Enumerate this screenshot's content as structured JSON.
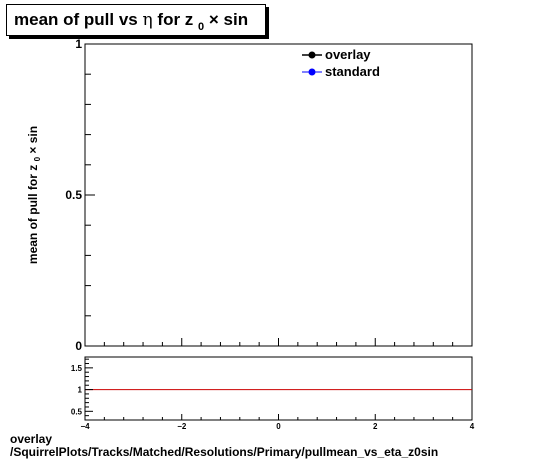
{
  "title": {
    "prefix": "mean of pull vs",
    "eta": "η",
    "middle": "for z",
    "sub": "0",
    "suffix": "× sin"
  },
  "ylabel": {
    "prefix": "mean of pull for z",
    "sub": "0",
    "suffix": "× sin"
  },
  "legend": [
    {
      "label": "overlay",
      "color": "#000000"
    },
    {
      "label": "standard",
      "color": "#0000ff"
    }
  ],
  "footer": {
    "line1": "overlay",
    "line2": "/SquirrelPlots/Tracks/Matched/Resolutions/Primary/pullmean_vs_eta_z0sin"
  },
  "chart_data": [
    {
      "type": "line",
      "title": "mean of pull vs η for z0 × sin",
      "xlabel": "",
      "ylabel": "mean of pull for z0 × sin",
      "xlim": [
        -4,
        4
      ],
      "ylim": [
        0,
        1
      ],
      "y_ticks": [
        {
          "value": 0,
          "label": "0"
        },
        {
          "value": 0.5,
          "label": "0.5"
        },
        {
          "value": 1,
          "label": "1"
        }
      ],
      "legend_position": "top-right",
      "series": [
        {
          "name": "overlay",
          "x": [],
          "y": []
        },
        {
          "name": "standard",
          "x": [],
          "y": []
        }
      ]
    },
    {
      "type": "line",
      "title": "",
      "xlim": [
        -4,
        4
      ],
      "ylim": [
        0.3,
        1.75
      ],
      "x_ticks": [
        {
          "value": -4,
          "label": "−4"
        },
        {
          "value": -2,
          "label": "−2"
        },
        {
          "value": 0,
          "label": "0"
        },
        {
          "value": 2,
          "label": "2"
        },
        {
          "value": 4,
          "label": "4"
        }
      ],
      "y_ticks": [
        {
          "value": 0.5,
          "label": "0.5"
        },
        {
          "value": 1,
          "label": "1"
        },
        {
          "value": 1.5,
          "label": "1.5"
        }
      ],
      "reference_line": {
        "y": 1,
        "color": "#cc0000"
      }
    }
  ]
}
